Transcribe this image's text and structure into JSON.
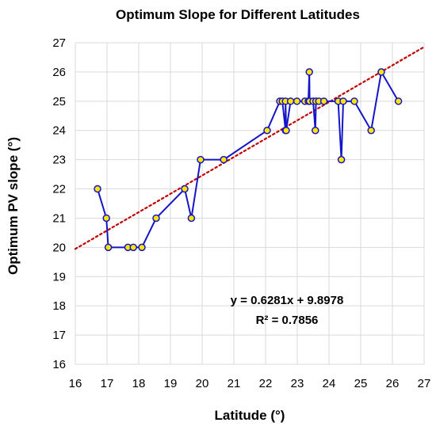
{
  "chart_data": {
    "type": "line",
    "title": "Optimum Slope for Different Latitudes",
    "xlabel": "Latitude (°)",
    "ylabel": "Optimum PV slope (°)",
    "xlim": [
      16,
      27
    ],
    "ylim": [
      16,
      27
    ],
    "xticks": [
      "16",
      "17",
      "18",
      "19",
      "20",
      "21",
      "22",
      "23",
      "24",
      "25",
      "26",
      "27"
    ],
    "yticks": [
      "16",
      "17",
      "18",
      "19",
      "20",
      "21",
      "22",
      "23",
      "24",
      "25",
      "26",
      "27"
    ],
    "grid": true,
    "legend": "none",
    "series": [
      {
        "marker": "circle",
        "color": "#1515c8",
        "marker_fill": "#ffe500",
        "x": [
          16.7,
          16.98,
          17.04,
          17.66,
          17.83,
          18.1,
          18.55,
          19.45,
          19.66,
          19.95,
          20.68,
          22.05,
          22.45,
          22.53,
          22.63,
          22.63,
          22.65,
          22.79,
          22.99,
          23.24,
          23.35,
          23.38,
          23.39,
          23.5,
          23.57,
          23.59,
          23.68,
          23.84,
          24.29,
          24.39,
          24.45,
          24.8,
          25.33,
          25.65,
          26.19
        ],
        "y": [
          22,
          21,
          20,
          20,
          20,
          20,
          21,
          22,
          21,
          23,
          23,
          24,
          25,
          25,
          24,
          25,
          24,
          25,
          25,
          25,
          25,
          26,
          25,
          25,
          24,
          25,
          25,
          25,
          25,
          23,
          25,
          25,
          24,
          26,
          25
        ]
      }
    ],
    "trendline": {
      "type": "linear",
      "slope": 0.6281,
      "intercept": 9.8978,
      "color": "#c00000",
      "style": "dotted",
      "equation_label": "y = 0.6281x + 9.8978",
      "r2_label": "R² = 0.7856"
    },
    "grid_color": "#d9d9d9"
  }
}
